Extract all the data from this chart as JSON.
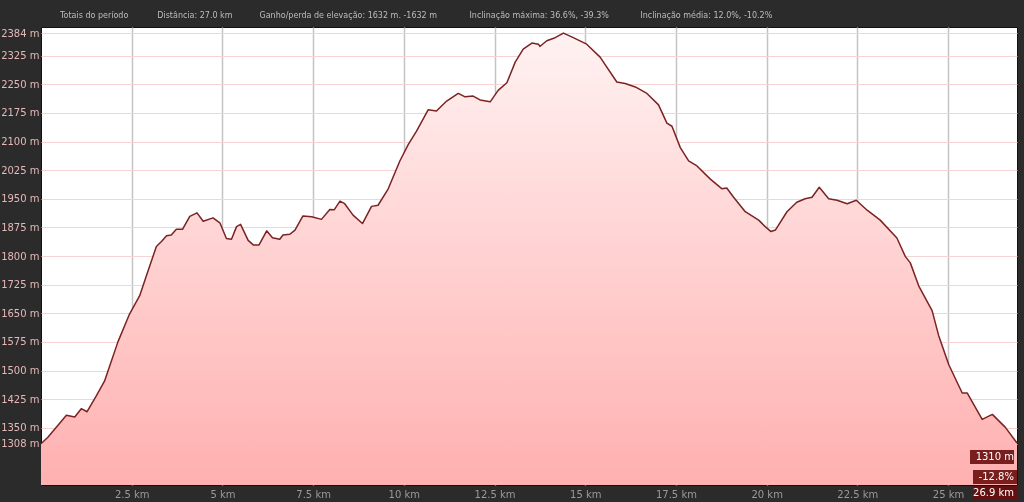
{
  "chart_data": {
    "type": "area",
    "x": [
      0,
      0.19,
      0.7,
      0.93,
      1.11,
      1.27,
      1.52,
      1.75,
      2.12,
      2.44,
      2.72,
      2.9,
      3.18,
      3.32,
      3.46,
      3.59,
      3.73,
      3.9,
      4.1,
      4.3,
      4.47,
      4.74,
      4.93,
      5.11,
      5.25,
      5.39,
      5.5,
      5.71,
      5.85,
      6.01,
      6.22,
      6.38,
      6.58,
      6.67,
      6.86,
      7.0,
      7.22,
      7.46,
      7.73,
      7.96,
      8.08,
      8.24,
      8.37,
      8.6,
      8.86,
      9.11,
      9.29,
      9.57,
      9.89,
      10.12,
      10.35,
      10.67,
      10.9,
      11.18,
      11.5,
      11.69,
      11.91,
      12.1,
      12.38,
      12.6,
      12.84,
      13.07,
      13.29,
      13.53,
      13.71,
      13.75,
      13.94,
      14.17,
      14.4,
      14.67,
      15.04,
      15.41,
      15.87,
      16.1,
      16.38,
      16.7,
      17.02,
      17.25,
      17.39,
      17.62,
      17.85,
      18.08,
      18.44,
      18.77,
      18.9,
      19.09,
      19.41,
      19.78,
      19.96,
      20.12,
      20.24,
      20.56,
      20.83,
      21.06,
      21.25,
      21.45,
      21.71,
      21.94,
      22.22,
      22.47,
      22.77,
      23.13,
      23.59,
      23.82,
      23.96,
      24.19,
      24.56,
      24.74,
      25.02,
      25.39,
      25.53,
      25.94,
      26.22,
      26.58,
      26.9
    ],
    "series": [
      {
        "color": "#7b2323",
        "values": [
          1308,
          1325,
          1383,
          1378,
          1400,
          1392,
          1433,
          1472,
          1575,
          1648,
          1696,
          1747,
          1825,
          1838,
          1853,
          1855,
          1870,
          1870,
          1904,
          1913,
          1891,
          1900,
          1887,
          1846,
          1844,
          1877,
          1883,
          1841,
          1829,
          1829,
          1866,
          1848,
          1844,
          1855,
          1857,
          1868,
          1905,
          1903,
          1896,
          1922,
          1921,
          1944,
          1937,
          1907,
          1885,
          1930,
          1933,
          1976,
          2049,
          2092,
          2127,
          2183,
          2180,
          2206,
          2226,
          2217,
          2219,
          2209,
          2204,
          2234,
          2254,
          2308,
          2342,
          2358,
          2355,
          2349,
          2364,
          2372,
          2384,
          2372,
          2355,
          2321,
          2256,
          2252,
          2243,
          2226,
          2196,
          2148,
          2140,
          2084,
          2049,
          2036,
          2002,
          1976,
          1978,
          1954,
          1916,
          1894,
          1877,
          1864,
          1868,
          1916,
          1941,
          1950,
          1954,
          1980,
          1950,
          1946,
          1937,
          1946,
          1920,
          1894,
          1847,
          1799,
          1782,
          1722,
          1657,
          1592,
          1515,
          1441,
          1441,
          1372,
          1385,
          1351,
          1310
        ]
      }
    ],
    "xlim": [
      0,
      26.9
    ],
    "ylim": [
      1200,
      2400
    ],
    "xticks": [
      {
        "value": 2.5,
        "label": "2.5 km"
      },
      {
        "value": 5,
        "label": "5 km"
      },
      {
        "value": 7.5,
        "label": "7.5 km"
      },
      {
        "value": 10,
        "label": "10 km"
      },
      {
        "value": 12.5,
        "label": "12.5 km"
      },
      {
        "value": 15,
        "label": "15 km"
      },
      {
        "value": 17.5,
        "label": "17.5 km"
      },
      {
        "value": 20,
        "label": "20 km"
      },
      {
        "value": 22.5,
        "label": "22.5 km"
      },
      {
        "value": 25,
        "label": "25 km"
      }
    ],
    "yticks": [
      {
        "value": 1308,
        "label": "1308 m"
      },
      {
        "value": 1350,
        "label": "1350 m"
      },
      {
        "value": 1425,
        "label": "1425 m"
      },
      {
        "value": 1500,
        "label": "1500 m"
      },
      {
        "value": 1575,
        "label": "1575 m"
      },
      {
        "value": 1650,
        "label": "1650 m"
      },
      {
        "value": 1725,
        "label": "1725 m"
      },
      {
        "value": 1800,
        "label": "1800 m"
      },
      {
        "value": 1875,
        "label": "1875 m"
      },
      {
        "value": 1950,
        "label": "1950 m"
      },
      {
        "value": 2025,
        "label": "2025 m"
      },
      {
        "value": 2100,
        "label": "2100 m"
      },
      {
        "value": 2175,
        "label": "2175 m"
      },
      {
        "value": 2250,
        "label": "2250 m"
      },
      {
        "value": 2325,
        "label": "2325 m"
      },
      {
        "value": 2384,
        "label": "2384 m"
      }
    ],
    "grid": true,
    "annotations": [
      "Totais do período",
      "Distância: 27.0 km",
      "Ganho/perda de elevação: 1632 m. -1632 m",
      "Inclinação máxima: 36.6%, -39.3%",
      "Inclinação média: 12.0%, -10.2%",
      {
        "text": "1310 m",
        "x": 26.9,
        "y": 1310
      },
      "26.9 km",
      "-12.8%"
    ]
  }
}
